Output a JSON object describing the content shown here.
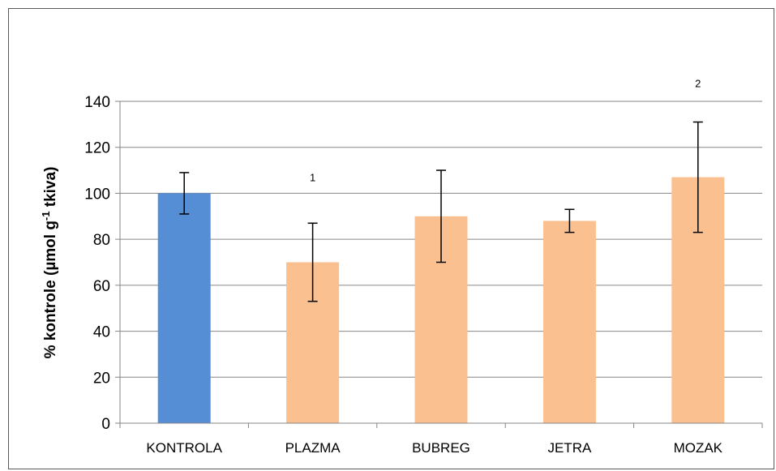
{
  "chart_data": {
    "type": "bar",
    "title": "",
    "xlabel": "",
    "ylabel": {
      "prefix": "% kontrole (µmol g",
      "superscript": "-1",
      "suffix": " tkiva)"
    },
    "ylim": [
      0,
      140
    ],
    "yticks": [
      0,
      20,
      40,
      60,
      80,
      100,
      120,
      140
    ],
    "grid": true,
    "categories": [
      "KONTROLA",
      "PLAZMA",
      "BUBREG",
      "JETRA",
      "MOZAK"
    ],
    "values": [
      100,
      70,
      90,
      88,
      107
    ],
    "error_low": [
      91,
      53,
      70,
      83,
      83
    ],
    "error_high": [
      109,
      87,
      110,
      93,
      131
    ],
    "annotations": [
      {
        "category": "PLAZMA",
        "label": "1",
        "y": 107
      },
      {
        "category": "MOZAK",
        "label": "2",
        "y": 148
      }
    ],
    "colors": {
      "KONTROLA": "#558ED5",
      "PLAZMA": "#FAC090",
      "BUBREG": "#FAC090",
      "JETRA": "#FAC090",
      "MOZAK": "#FAC090"
    },
    "gridline_color": "#868686",
    "errorbar_color": "#000000"
  }
}
